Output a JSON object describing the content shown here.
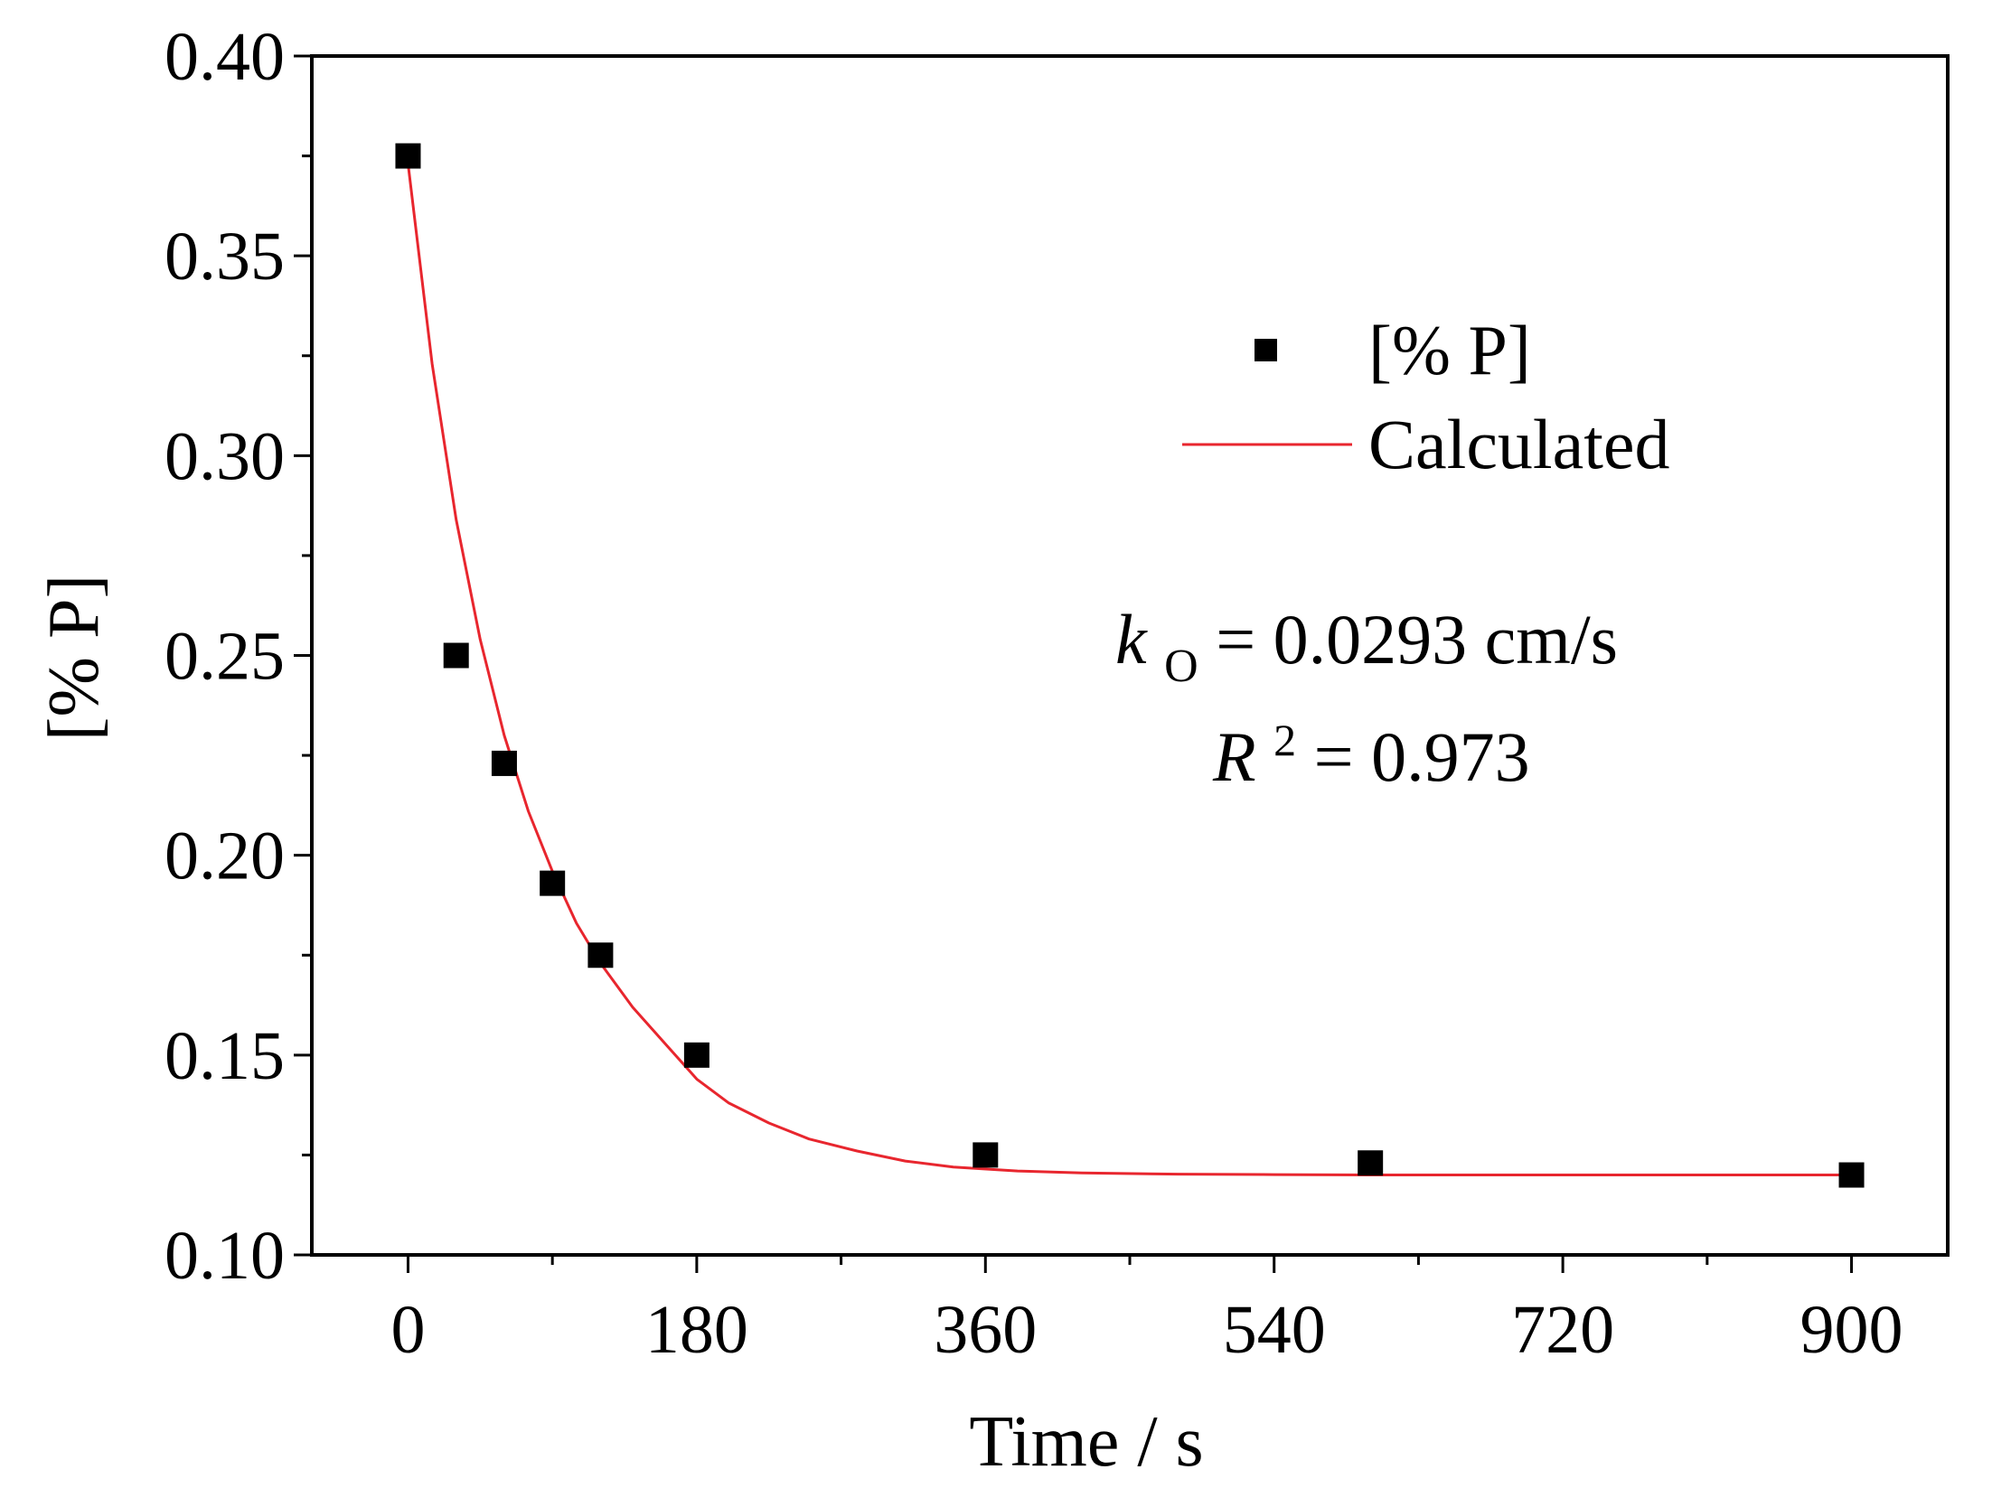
{
  "colors": {
    "marker": "#000000",
    "fit_line": "#e8262e",
    "axis": "#000000"
  },
  "chart_data": {
    "type": "scatter",
    "xlabel": "Time / s",
    "ylabel": "[% P]",
    "xlim": [
      -60,
      960
    ],
    "ylim": [
      0.1,
      0.4
    ],
    "xticks": [
      0,
      180,
      360,
      540,
      720,
      900
    ],
    "xtick_labels": [
      "0",
      "180",
      "360",
      "540",
      "720",
      "900"
    ],
    "yticks": [
      0.1,
      0.15,
      0.2,
      0.25,
      0.3,
      0.35,
      0.4
    ],
    "ytick_labels": [
      "0.10",
      "0.15",
      "0.20",
      "0.25",
      "0.30",
      "0.35",
      "0.40"
    ],
    "legend_position": "top-right",
    "series": [
      {
        "name": "[% P]",
        "kind": "points",
        "marker": "square",
        "x": [
          0,
          30,
          60,
          90,
          120,
          180,
          360,
          600,
          900
        ],
        "y": [
          0.375,
          0.25,
          0.223,
          0.193,
          0.175,
          0.15,
          0.125,
          0.123,
          0.12
        ]
      },
      {
        "name": "Calculated",
        "kind": "line",
        "x": [
          0,
          15,
          30,
          45,
          60,
          75,
          90,
          105,
          120,
          140,
          160,
          180,
          200,
          225,
          250,
          280,
          310,
          340,
          380,
          420,
          480,
          540,
          600,
          700,
          800,
          900
        ],
        "y": [
          0.373,
          0.323,
          0.284,
          0.254,
          0.23,
          0.211,
          0.196,
          0.183,
          0.173,
          0.162,
          0.153,
          0.144,
          0.138,
          0.133,
          0.129,
          0.126,
          0.1235,
          0.122,
          0.121,
          0.1205,
          0.1202,
          0.1201,
          0.12,
          0.12,
          0.12,
          0.12
        ]
      }
    ],
    "annotations": {
      "k_symbol": "k",
      "k_subscript": "O",
      "k_value": " = 0.0293 cm/s",
      "r_symbol": "R",
      "r_superscript": "2",
      "r_value": " = 0.973"
    }
  }
}
